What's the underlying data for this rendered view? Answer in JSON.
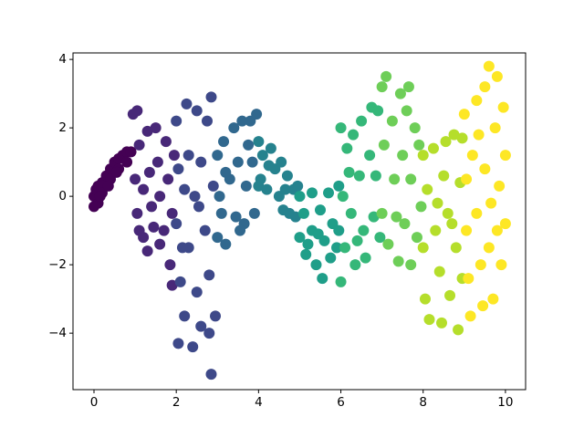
{
  "chart_data": {
    "type": "scatter",
    "xlim": [
      -0.51,
      10.49
    ],
    "ylim": [
      -5.65,
      4.19
    ],
    "xticks": [
      0,
      2,
      4,
      6,
      8,
      10
    ],
    "yticks": [
      {
        "value": -4,
        "label": "−4"
      },
      {
        "value": -2,
        "label": "−2"
      },
      0,
      2,
      4
    ],
    "series": [
      {
        "color": "#440154",
        "x": [
          0,
          0.05,
          0.1,
          0.2,
          0.3,
          0.4,
          0.5,
          0.6,
          0.7,
          0.8,
          0.9,
          0.0,
          0.1,
          0.2,
          0.4,
          0.6,
          0.8,
          0.15,
          0.35,
          0.55
        ],
        "y": [
          0,
          0.2,
          -0.2,
          0.4,
          0.6,
          0.8,
          1.0,
          1.1,
          1.2,
          1.3,
          1.3,
          -0.3,
          0.3,
          0.1,
          0.5,
          0.8,
          1.0,
          0.0,
          0.3,
          0.7
        ]
      },
      {
        "color": "#482878",
        "x": [
          0.95,
          1.05,
          1.1,
          1.0,
          1.05,
          1.1,
          1.2,
          1.3,
          1.3,
          1.35,
          1.4,
          1.5,
          1.55,
          1.6,
          1.6,
          1.7,
          1.75,
          1.8,
          1.85,
          1.9,
          1.95,
          1.9,
          1.2,
          1.45
        ],
        "y": [
          2.4,
          2.5,
          1.5,
          0.5,
          -0.5,
          -1.0,
          -1.2,
          -1.6,
          1.9,
          0.7,
          -0.3,
          2.0,
          1.0,
          0,
          -1.4,
          -1.0,
          1.6,
          0.5,
          -2.0,
          -0.5,
          1.2,
          -2.6,
          0.2,
          -0.9
        ]
      },
      {
        "color": "#3e4989",
        "x": [
          2.0,
          2.05,
          2.0,
          2.1,
          2.05,
          2.2,
          2.25,
          2.3,
          2.3,
          2.4,
          2.45,
          2.5,
          2.5,
          2.6,
          2.6,
          2.7,
          2.75,
          2.8,
          2.85,
          2.85,
          2.9,
          2.95,
          2.15,
          2.55,
          2.2,
          2.8
        ],
        "y": [
          2.2,
          0.8,
          -0.8,
          -2.5,
          -4.3,
          -3.5,
          2.7,
          1.2,
          -1.5,
          -4.4,
          0,
          2.5,
          -2.8,
          -3.8,
          1.0,
          -1.0,
          2.2,
          -2.3,
          -5.2,
          2.9,
          0.3,
          -3.5,
          -1.5,
          -0.3,
          0.2,
          -4.0
        ]
      },
      {
        "color": "#31688e",
        "x": [
          3.0,
          3.0,
          3.05,
          3.15,
          3.2,
          3.3,
          3.4,
          3.45,
          3.5,
          3.6,
          3.65,
          3.7,
          3.8,
          3.85,
          3.9,
          3.95,
          3.2,
          3.55,
          3.75,
          3.1
        ],
        "y": [
          1.2,
          -1.2,
          0,
          1.6,
          -1.4,
          0.5,
          2.0,
          -0.6,
          1.0,
          2.2,
          -0.8,
          0.3,
          2.2,
          1.0,
          -0.5,
          2.4,
          0.7,
          -1.0,
          1.5,
          -0.5
        ]
      },
      {
        "color": "#26828e",
        "x": [
          4.0,
          4.05,
          4.1,
          4.2,
          4.3,
          4.4,
          4.5,
          4.55,
          4.6,
          4.7,
          4.75,
          4.85,
          4.9,
          4.95,
          4.0,
          4.25,
          4.65
        ],
        "y": [
          1.6,
          0.5,
          1.2,
          0.2,
          1.4,
          0.8,
          0,
          1.0,
          -0.4,
          0.6,
          -0.5,
          0.2,
          -0.6,
          0.3,
          0.3,
          0.9,
          0.2
        ]
      },
      {
        "color": "#1f9e89",
        "x": [
          5.0,
          5.0,
          5.1,
          5.15,
          5.3,
          5.3,
          5.4,
          5.5,
          5.55,
          5.6,
          5.7,
          5.75,
          5.8,
          5.9,
          5.95,
          5.95,
          5.2,
          5.45
        ],
        "y": [
          0,
          -1.2,
          -0.5,
          -1.7,
          0.1,
          -1.0,
          -2.0,
          -0.4,
          -2.4,
          -1.3,
          0.1,
          -1.8,
          -0.8,
          -1.5,
          0.3,
          -1.0,
          -1.4,
          -1.1
        ]
      },
      {
        "color": "#35b779",
        "x": [
          6.0,
          6.0,
          6.05,
          6.1,
          6.15,
          6.25,
          6.3,
          6.35,
          6.45,
          6.5,
          6.55,
          6.6,
          6.7,
          6.75,
          6.8,
          6.85,
          6.9,
          6.95,
          6.4,
          6.2
        ],
        "y": [
          -2.5,
          2.0,
          0,
          -1.5,
          1.4,
          -0.5,
          1.8,
          -2.0,
          0.6,
          2.2,
          -1.0,
          -1.8,
          1.2,
          2.6,
          -0.6,
          0.6,
          2.5,
          -1.2,
          -1.3,
          0.7
        ]
      },
      {
        "color": "#6ece58",
        "x": [
          7.0,
          7.05,
          7.0,
          7.1,
          7.15,
          7.25,
          7.3,
          7.4,
          7.45,
          7.5,
          7.55,
          7.6,
          7.7,
          7.7,
          7.8,
          7.85,
          7.9,
          7.95,
          7.35,
          7.65
        ],
        "y": [
          3.2,
          1.5,
          -0.5,
          3.5,
          -1.4,
          2.2,
          0.5,
          -1.9,
          3.0,
          1.2,
          -0.8,
          2.5,
          -2.0,
          0.5,
          2.0,
          -1.2,
          1.5,
          -0.3,
          -0.6,
          3.2
        ]
      },
      {
        "color": "#b5de2b",
        "x": [
          8.0,
          8.0,
          8.05,
          8.1,
          8.15,
          8.25,
          8.3,
          8.4,
          8.45,
          8.5,
          8.55,
          8.6,
          8.65,
          8.75,
          8.8,
          8.85,
          8.9,
          8.95,
          8.95,
          8.35,
          8.7
        ],
        "y": [
          1.2,
          -1.5,
          -3.0,
          0.2,
          -3.6,
          1.4,
          -1.0,
          -2.2,
          -3.7,
          0.6,
          1.6,
          -0.5,
          -2.9,
          1.8,
          -1.5,
          -3.9,
          0.4,
          1.7,
          -2.4,
          -0.2,
          -0.8
        ]
      },
      {
        "color": "#fde725",
        "x": [
          9.0,
          9.05,
          9.05,
          9.1,
          9.15,
          9.2,
          9.3,
          9.3,
          9.4,
          9.45,
          9.5,
          9.5,
          9.6,
          9.6,
          9.65,
          9.7,
          9.75,
          9.8,
          9.85,
          9.9,
          9.95,
          10.0,
          10.0,
          9.35,
          9.8
        ],
        "y": [
          2.4,
          -1.0,
          0.5,
          -2.4,
          -3.5,
          1.2,
          2.8,
          -0.5,
          -2.0,
          -3.2,
          3.2,
          0.8,
          3.8,
          -1.5,
          -0.2,
          -3.0,
          2.0,
          3.5,
          0.3,
          -2.0,
          2.6,
          -0.8,
          1.2,
          1.8,
          -1.0
        ]
      }
    ]
  }
}
